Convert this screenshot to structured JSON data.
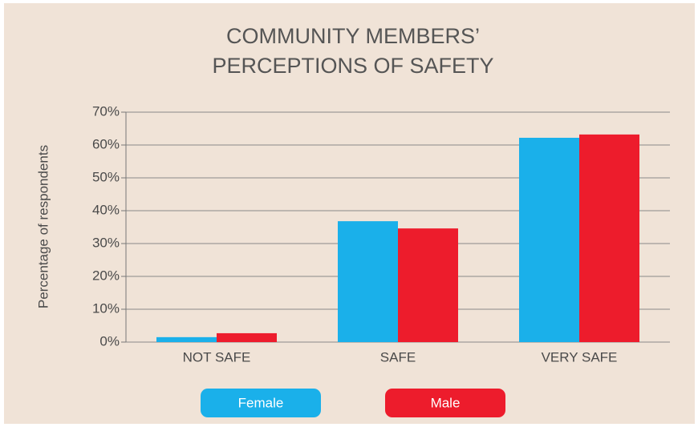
{
  "chart_data": {
    "type": "bar",
    "title": [
      "COMMUNITY MEMBERS’",
      "PERCEPTIONS OF SAFETY"
    ],
    "y_label": "Percentage of respondents",
    "categories": [
      "NOT SAFE",
      "SAFE",
      "VERY SAFE"
    ],
    "series": [
      {
        "name": "Female",
        "color": "#1ab0ea",
        "values": [
          1.5,
          36.8,
          62.2
        ]
      },
      {
        "name": "Male",
        "color": "#ed1c2c",
        "values": [
          2.7,
          34.6,
          63.2
        ]
      }
    ],
    "ylim": [
      0,
      70
    ],
    "yticks": [
      {
        "value": 0,
        "label": "0%"
      },
      {
        "value": 10,
        "label": "10%"
      },
      {
        "value": 20,
        "label": "20%"
      },
      {
        "value": 30,
        "label": "30%"
      },
      {
        "value": 40,
        "label": "40%"
      },
      {
        "value": 50,
        "label": "50%"
      },
      {
        "value": 60,
        "label": "60%"
      },
      {
        "value": 70,
        "label": "70%"
      }
    ],
    "grid": true
  }
}
